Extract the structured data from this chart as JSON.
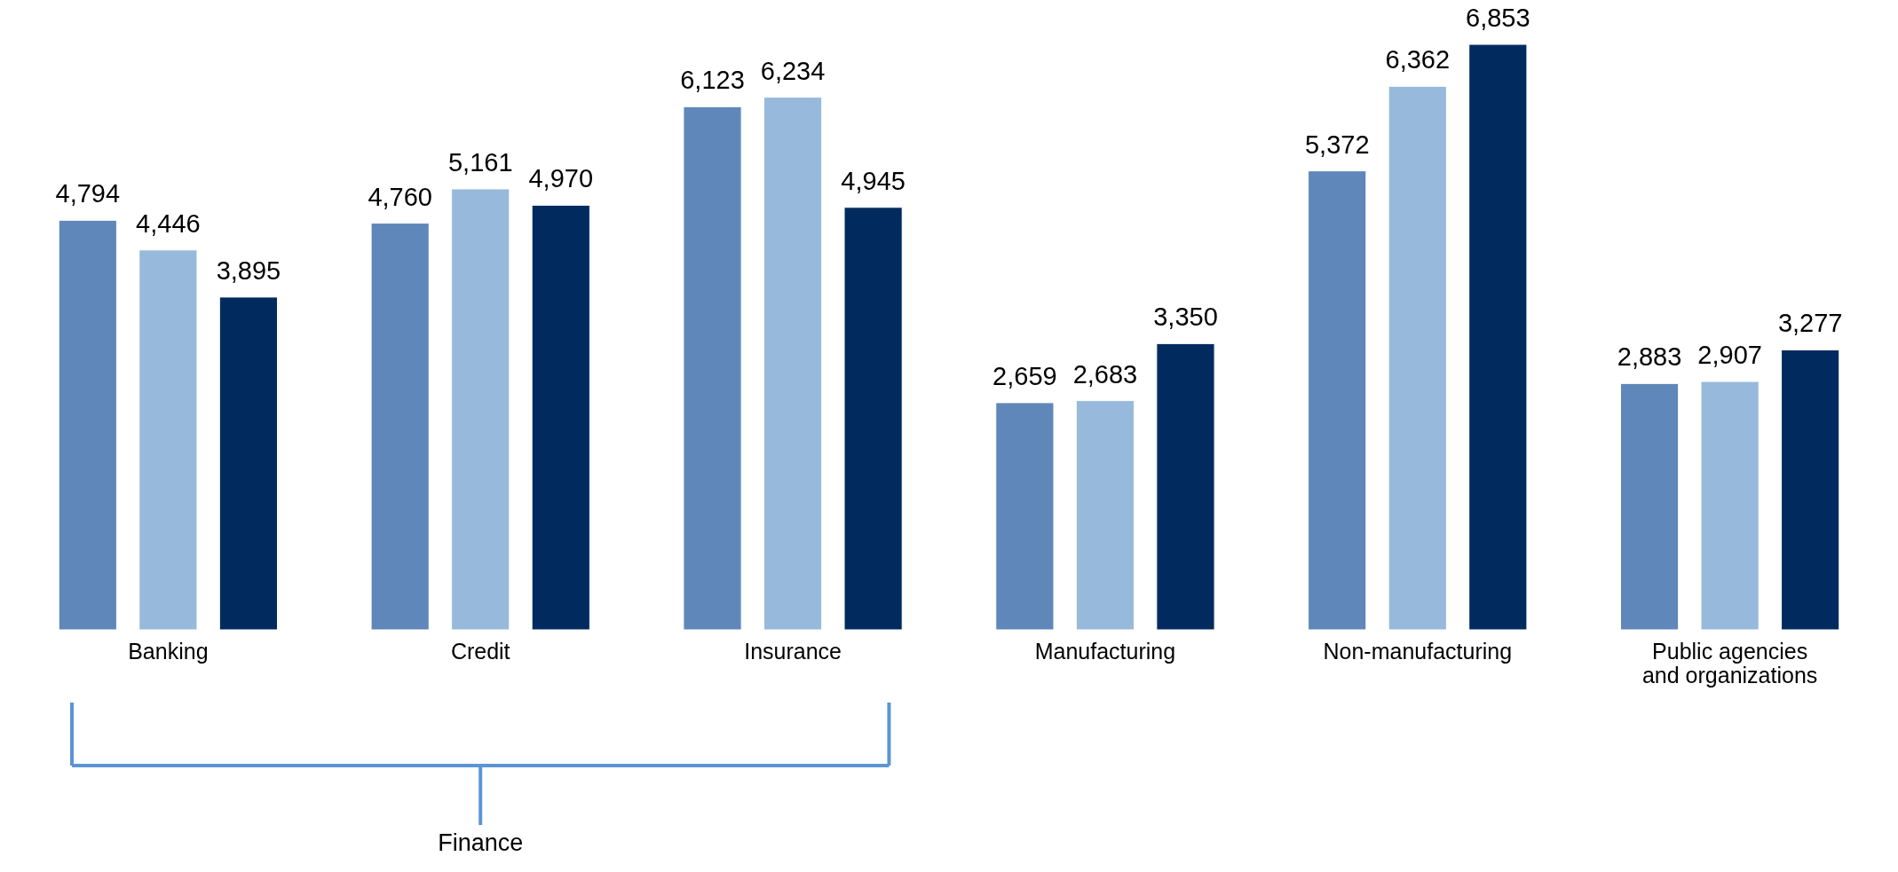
{
  "chart_data": {
    "type": "bar",
    "categories": [
      "Banking",
      "Credit",
      "Insurance",
      "Manufacturing",
      "Non-manufacturing",
      "Public agencies\nand organizations"
    ],
    "series": [
      {
        "color": "#5f87b9",
        "values": [
          4794,
          4760,
          6123,
          2659,
          5372,
          2883
        ],
        "value_labels": [
          "4,794",
          "4,760",
          "6,123",
          "2,659",
          "5,372",
          "2,883"
        ]
      },
      {
        "color": "#97b9db",
        "values": [
          4446,
          5161,
          6234,
          2683,
          6362,
          2907
        ],
        "value_labels": [
          "4,446",
          "5,161",
          "6,234",
          "2,683",
          "6,362",
          "2,907"
        ]
      },
      {
        "color": "#012b5f",
        "values": [
          3895,
          4970,
          4945,
          3350,
          6853,
          3277
        ],
        "value_labels": [
          "3,895",
          "4,970",
          "4,945",
          "3,350",
          "6,853",
          "3,277"
        ]
      }
    ],
    "annotations": [
      "Finance"
    ]
  }
}
